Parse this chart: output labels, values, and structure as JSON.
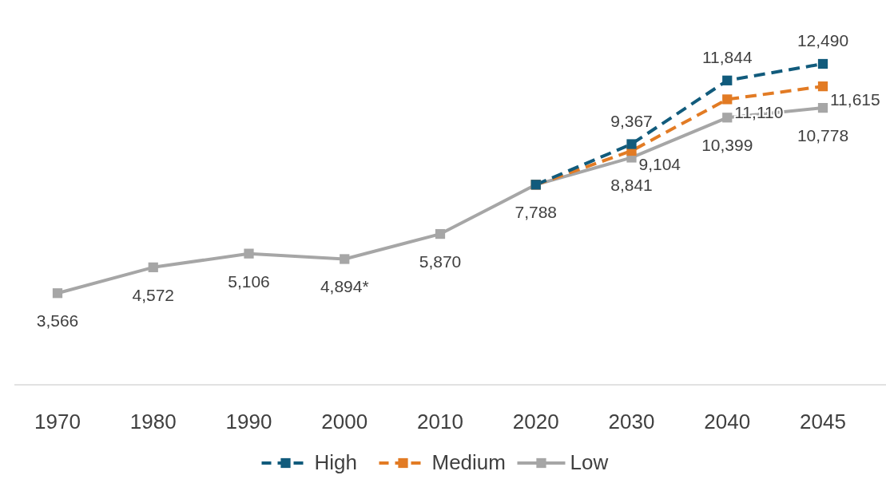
{
  "chart_data": {
    "type": "line",
    "categories": [
      "1970",
      "1980",
      "1990",
      "2000",
      "2010",
      "2020",
      "2030",
      "2040",
      "2045"
    ],
    "series": [
      {
        "name": "High",
        "color": "#115b7c",
        "line_style": "dashed",
        "values": [
          null,
          null,
          null,
          null,
          null,
          7788,
          9367,
          11844,
          12490
        ],
        "value_labels": [
          null,
          null,
          null,
          null,
          null,
          null,
          "9,367",
          "11,844",
          "12,490"
        ]
      },
      {
        "name": "Medium",
        "color": "#e27b24",
        "line_style": "dashed",
        "values": [
          null,
          null,
          null,
          null,
          null,
          7788,
          9104,
          11110,
          11615
        ],
        "value_labels": [
          null,
          null,
          null,
          null,
          null,
          null,
          "9,104",
          "11,110",
          "11,615"
        ]
      },
      {
        "name": "Low",
        "color": "#a6a6a6",
        "line_style": "solid",
        "values": [
          3566,
          4572,
          5106,
          4894,
          5870,
          7788,
          8841,
          10399,
          10778
        ],
        "value_labels": [
          "3,566",
          "4,572",
          "5,106",
          "4,894*",
          "5,870",
          "7,788",
          "8,841",
          "10,399",
          "10,778"
        ]
      }
    ],
    "marker": "square",
    "legend": "bottom",
    "tick_labels": "x"
  }
}
